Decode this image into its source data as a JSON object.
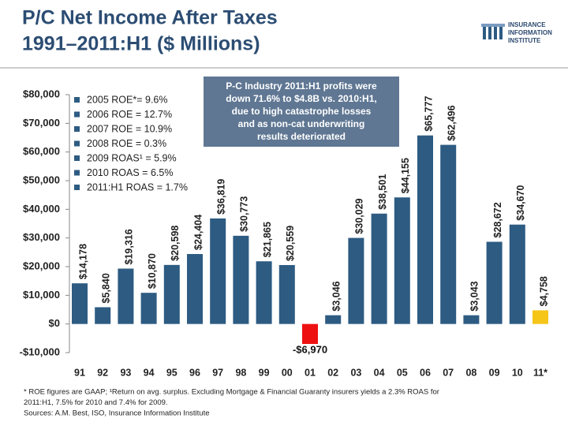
{
  "chart_data": {
    "type": "bar",
    "title": [
      "P/C Net Income After Taxes",
      "1991–2011:H1 ($ Millions)"
    ],
    "logo": [
      "INSURANCE",
      "INFORMATION",
      "INSTITUTE"
    ],
    "categories": [
      "91",
      "92",
      "93",
      "94",
      "95",
      "96",
      "97",
      "98",
      "99",
      "00",
      "01",
      "02",
      "03",
      "04",
      "05",
      "06",
      "07",
      "08",
      "09",
      "10",
      "11*"
    ],
    "values": [
      14178,
      5840,
      19316,
      10870,
      20598,
      24404,
      36819,
      30773,
      21865,
      20559,
      -6970,
      3046,
      30029,
      38501,
      44155,
      65777,
      62496,
      3043,
      28672,
      34670,
      4758
    ],
    "value_labels": [
      "$14,178",
      "$5,840",
      "$19,316",
      "$10,870",
      "$20,598",
      "$24,404",
      "$36,819",
      "$30,773",
      "$21,865",
      "$20,559",
      "-$6,970",
      "$3,046",
      "$30,029",
      "$38,501",
      "$44,155",
      "$65,777",
      "$62,496",
      "$3,043",
      "$28,672",
      "$34,670",
      "$4,758"
    ],
    "colors": [
      "#2d5b82",
      "#2d5b82",
      "#2d5b82",
      "#2d5b82",
      "#2d5b82",
      "#2d5b82",
      "#2d5b82",
      "#2d5b82",
      "#2d5b82",
      "#2d5b82",
      "#ee1111",
      "#2d5b82",
      "#2d5b82",
      "#2d5b82",
      "#2d5b82",
      "#2d5b82",
      "#2d5b82",
      "#2d5b82",
      "#2d5b82",
      "#2d5b82",
      "#f5c518"
    ],
    "ylim": [
      -10000,
      80000
    ],
    "yticks": [
      {
        "value": -10000,
        "label": "-$10,000"
      },
      {
        "value": 0,
        "label": "$0"
      },
      {
        "value": 10000,
        "label": "$10,000"
      },
      {
        "value": 20000,
        "label": "$20,000"
      },
      {
        "value": 30000,
        "label": "$30,000"
      },
      {
        "value": 40000,
        "label": "$40,000"
      },
      {
        "value": 50000,
        "label": "$50,000"
      },
      {
        "value": 60000,
        "label": "$60,000"
      },
      {
        "value": 70000,
        "label": "$70,000"
      },
      {
        "value": 80000,
        "label": "$80,000"
      }
    ],
    "notes": [
      "2005 ROE*= 9.6%",
      "2006 ROE = 12.7%",
      "2007 ROE = 10.9%",
      "2008 ROE = 0.3%",
      "2009 ROAS¹ = 5.9%",
      "2010 ROAS = 6.5%",
      "2011:H1 ROAS = 1.7%"
    ],
    "annotation": [
      "P-C Industry 2011:H1 profits were",
      "down 71.6% to $4.8B vs. 2010:H1,",
      "due to high catastrophe losses",
      "and as non-cat underwriting",
      "results deteriorated"
    ],
    "footnote": [
      "* ROE figures are GAAP; ¹Return on avg. surplus.  Excluding Mortgage & Financial Guaranty insurers yields a 2.3% ROAS for",
      "2011:H1, 7.5% for 2010 and 7.4% for 2009.",
      "Sources: A.M. Best, ISO, Insurance Information Institute"
    ]
  }
}
